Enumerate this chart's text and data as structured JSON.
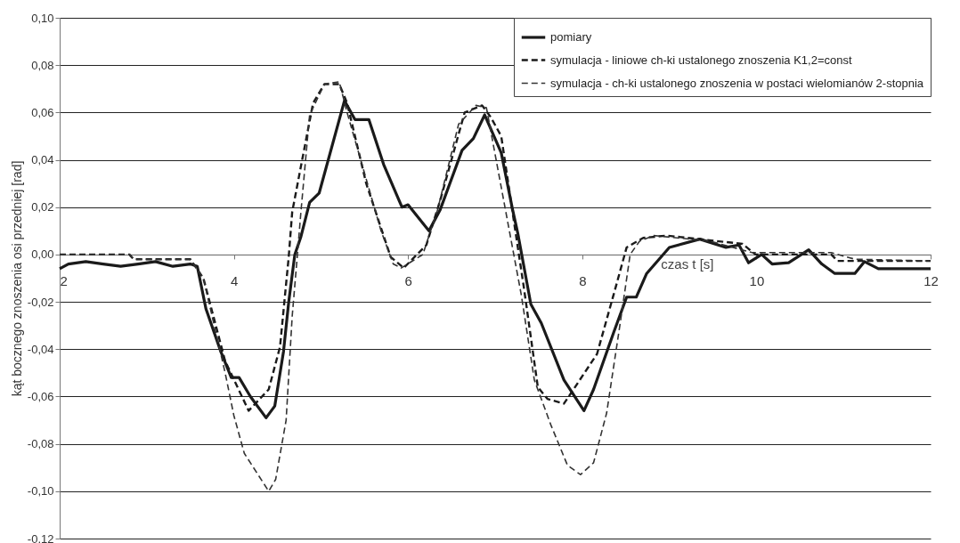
{
  "chart_data": {
    "type": "line",
    "xlabel": "czas t [s]",
    "ylabel": "kąt bocznego znoszenia osi przedniej [rad]",
    "xlim": [
      2,
      12
    ],
    "xticks": [
      2,
      4,
      6,
      8,
      10,
      12
    ],
    "ylim": [
      -0.12,
      0.1
    ],
    "yticks": [
      {
        "value": -0.12,
        "label": "-0,12"
      },
      {
        "value": -0.1,
        "label": "-0,10"
      },
      {
        "value": -0.08,
        "label": "-0,08"
      },
      {
        "value": -0.06,
        "label": "-0,06"
      },
      {
        "value": -0.04,
        "label": "-0,04"
      },
      {
        "value": -0.02,
        "label": "-0,02"
      },
      {
        "value": 0,
        "label": "0,00"
      },
      {
        "value": 0.02,
        "label": "0,02"
      },
      {
        "value": 0.04,
        "label": "0,04"
      },
      {
        "value": 0.06,
        "label": "0,06"
      },
      {
        "value": 0.08,
        "label": "0,08"
      },
      {
        "value": 0.1,
        "label": "0,10"
      }
    ],
    "grid": "y",
    "legend": "top right",
    "series": [
      {
        "name": "pomiary",
        "color": "#1a1a1a",
        "line_style": "solid",
        "x": [
          2.0,
          2.1,
          2.3,
          2.5,
          2.7,
          2.9,
          3.1,
          3.3,
          3.5,
          3.58,
          3.68,
          3.85,
          3.97,
          4.06,
          4.19,
          4.37,
          4.47,
          4.57,
          4.63,
          4.7,
          4.77,
          4.87,
          4.98,
          5.27,
          5.39,
          5.55,
          5.72,
          5.93,
          6.0,
          6.24,
          6.37,
          6.62,
          6.75,
          6.88,
          7.07,
          7.2,
          7.26,
          7.41,
          7.53,
          7.79,
          8.02,
          8.13,
          8.36,
          8.51,
          8.62,
          8.74,
          9.0,
          9.35,
          9.65,
          9.8,
          9.91,
          10.06,
          10.18,
          10.37,
          10.6,
          10.75,
          10.9,
          11.13,
          11.24,
          11.4,
          11.69,
          12.0
        ],
        "values": [
          -0.006,
          -0.004,
          -0.003,
          -0.004,
          -0.005,
          -0.004,
          -0.003,
          -0.005,
          -0.004,
          -0.005,
          -0.023,
          -0.041,
          -0.052,
          -0.052,
          -0.06,
          -0.069,
          -0.064,
          -0.041,
          -0.02,
          0,
          0.0075,
          0.022,
          0.026,
          0.065,
          0.057,
          0.057,
          0.038,
          0.02,
          0.021,
          0.01,
          0.019,
          0.044,
          0.049,
          0.059,
          0.043,
          0.019,
          0.009,
          -0.021,
          -0.029,
          -0.053,
          -0.066,
          -0.057,
          -0.033,
          -0.018,
          -0.018,
          -0.008,
          0.003,
          0.0065,
          0.003,
          0.004,
          -0.0035,
          0,
          -0.004,
          -0.0035,
          0.002,
          -0.004,
          -0.008,
          -0.008,
          -0.003,
          -0.006,
          -0.006,
          -0.006
        ]
      },
      {
        "name": "symulacja - liniowe ch-ki ustalonego znoszenia K1,2=const",
        "color": "#1a1a1a",
        "line_style": "dashed",
        "x": [
          2.0,
          2.8,
          2.85,
          3.5,
          3.65,
          3.9,
          4.17,
          4.4,
          4.53,
          4.63,
          4.67,
          4.8,
          4.91,
          5.04,
          5.21,
          5.3,
          5.52,
          5.8,
          5.95,
          6.21,
          6.37,
          6.65,
          6.85,
          6.95,
          7.07,
          7.24,
          7.33,
          7.49,
          7.6,
          7.79,
          7.9,
          8.17,
          8.36,
          8.51,
          8.7,
          8.97,
          9.84,
          9.99,
          10.86,
          10.93,
          12.0
        ],
        "values": [
          0,
          0,
          -0.002,
          -0.002,
          -0.01,
          -0.045,
          -0.066,
          -0.057,
          -0.039,
          -0.001,
          0.018,
          0.043,
          0.064,
          0.072,
          0.072,
          0.064,
          0.03,
          -0.001,
          -0.0057,
          0.004,
          0.023,
          0.06,
          0.063,
          0.058,
          0.05,
          0.008,
          -0.014,
          -0.056,
          -0.061,
          -0.063,
          -0.057,
          -0.042,
          -0.017,
          0.003,
          0.007,
          0.008,
          0.0045,
          0,
          0,
          -0.0027,
          -0.0027
        ]
      },
      {
        "name": "symulacja - ch-ki ustalonego znoszenia w postaci wielomianów 2-stopnia",
        "color": "#333333",
        "line_style": "dashed",
        "x": [
          2.0,
          2.8,
          2.85,
          3.5,
          3.65,
          3.9,
          4.0,
          4.12,
          4.4,
          4.48,
          4.6,
          4.67,
          4.73,
          4.77,
          4.87,
          5.04,
          5.21,
          5.3,
          5.55,
          5.69,
          5.83,
          5.92,
          6.17,
          6.34,
          6.58,
          6.78,
          6.9,
          7.3,
          7.45,
          7.64,
          7.83,
          7.98,
          8.13,
          8.28,
          8.44,
          8.55,
          8.66,
          8.82,
          9.46,
          9.95,
          10.86,
          11.13,
          12.0
        ],
        "values": [
          0,
          0,
          -0.002,
          -0.002,
          -0.01,
          -0.05,
          -0.068,
          -0.084,
          -0.1,
          -0.095,
          -0.07,
          -0.026,
          0,
          0.018,
          0.059,
          0.072,
          0.073,
          0.06,
          0.028,
          0.01,
          -0.004,
          -0.0057,
          0,
          0.019,
          0.055,
          0.063,
          0.062,
          -0.017,
          -0.053,
          -0.072,
          -0.089,
          -0.093,
          -0.088,
          -0.067,
          -0.028,
          0,
          0.0057,
          0.008,
          0.0057,
          0.0008,
          0.0008,
          -0.002,
          -0.0027
        ]
      }
    ]
  }
}
